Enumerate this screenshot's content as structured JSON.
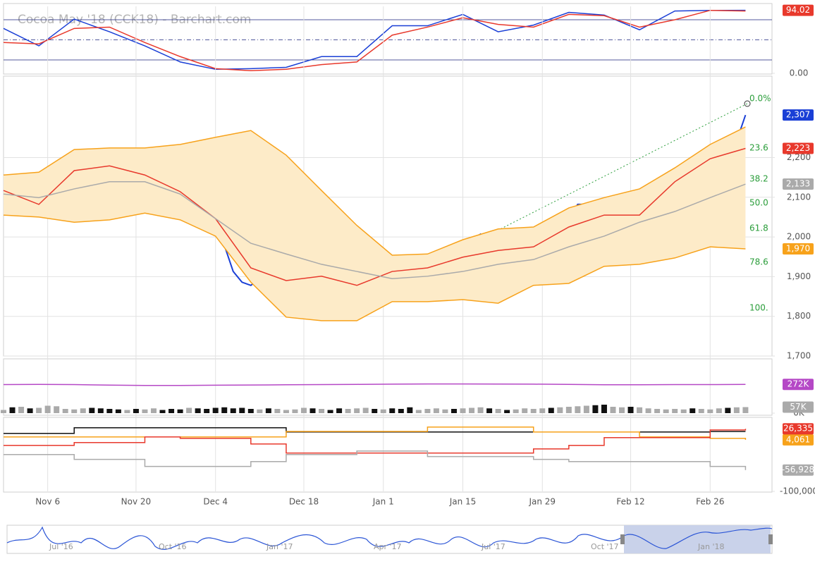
{
  "chart_data": [
    {
      "type": "line",
      "xlim": [
        0,
        87
      ],
      "ylim": [
        0,
        100
      ],
      "yticks": [
        {
          "value": 0,
          "label": "0.00"
        }
      ],
      "levels": [
        80,
        50,
        20
      ],
      "series": [
        {
          "color": "#1a3fd6",
          "badge": "#e8392c",
          "last_label": "94.02",
          "x": [
            0,
            4,
            8,
            12,
            16,
            20,
            24,
            28,
            32,
            36,
            40,
            44,
            48,
            52,
            56,
            60,
            64,
            68,
            72,
            76,
            80,
            84
          ],
          "values": [
            67,
            41,
            81,
            62,
            41,
            17,
            6,
            7,
            9,
            25,
            25,
            71,
            71,
            88,
            62,
            72,
            91,
            87,
            65,
            93,
            94,
            94.02
          ]
        },
        {
          "color": "#e8392c",
          "x": [
            0,
            4,
            8,
            12,
            16,
            20,
            24,
            28,
            32,
            36,
            40,
            44,
            48,
            52,
            56,
            60,
            64,
            68,
            72,
            76,
            80,
            84
          ],
          "values": [
            46,
            44,
            67,
            69,
            46,
            25,
            7,
            4,
            6,
            13,
            17,
            57,
            69,
            83,
            73,
            69,
            88,
            86,
            69,
            80,
            94,
            93
          ]
        }
      ]
    },
    {
      "type": "line",
      "title": "Cocoa May '18 (CCK18) - Barchart.com",
      "xlim": [
        0,
        87
      ],
      "ylim": [
        1700,
        2405
      ],
      "grid": true,
      "xticks": [
        {
          "value": 5,
          "label": "Nov 6"
        },
        {
          "value": 15,
          "label": "Nov 20"
        },
        {
          "value": 24,
          "label": "Dec 4"
        },
        {
          "value": 34,
          "label": "Dec 18"
        },
        {
          "value": 43,
          "label": "Jan 1"
        },
        {
          "value": 52,
          "label": "Jan 15"
        },
        {
          "value": 61,
          "label": "Jan 29"
        },
        {
          "value": 71,
          "label": "Feb 12"
        },
        {
          "value": 80,
          "label": "Feb 26"
        }
      ],
      "yticks": [
        {
          "value": 1700,
          "label": "1,700"
        },
        {
          "value": 1800,
          "label": "1,800"
        },
        {
          "value": 1900,
          "label": "1,900"
        },
        {
          "value": 2000,
          "label": "2,000"
        },
        {
          "value": 2100,
          "label": "2,100"
        },
        {
          "value": 2200,
          "label": "2,200"
        }
      ],
      "fib_labels": [
        "0.0%",
        "23.6",
        "38.2",
        "50.0",
        "61.8",
        "78.6",
        "100."
      ],
      "series": [
        {
          "color": "#1a3fd6",
          "last_label": "2,307",
          "values": [
            2117,
            2108,
            2117,
            2068,
            2068,
            2117,
            2144,
            2192,
            2203,
            2220,
            2206,
            2203,
            2171,
            2153,
            2156,
            2121,
            2121,
            2132,
            2121,
            2103,
            2064,
            2103,
            2073,
            2037,
            2020,
            1979,
            1913,
            1886,
            1878,
            1895,
            1869,
            1886,
            1886,
            1886,
            1913,
            1908,
            1922,
            1913,
            1824,
            1842,
            1869,
            1908,
            1904,
            1931,
            1922,
            1904,
            1901,
            1913,
            1913,
            1936,
            1949,
            1940,
            1957,
            1993,
            2007,
            1972,
            1972,
            1961,
            1972,
            1975,
            1997,
            2011,
            1993,
            2020,
            2046,
            2082,
            2082,
            2064,
            2055,
            2055,
            2064,
            2020,
            2029,
            2073,
            2126,
            2132,
            2139,
            2171,
            2156,
            2179,
            2215,
            2224,
            2219,
            2242,
            2307
          ]
        },
        {
          "color": "#f7a21b",
          "fill_to_next": "#fdebc8",
          "x": [
            0,
            4,
            8,
            12,
            16,
            20,
            24,
            28,
            32,
            36,
            40,
            44,
            48,
            52,
            56,
            60,
            64,
            68,
            72,
            76,
            80,
            84
          ],
          "values": [
            2156,
            2163,
            2220,
            2224,
            2224,
            2233,
            2251,
            2268,
            2206,
            2117,
            2029,
            1954,
            1957,
            1993,
            2020,
            2025,
            2073,
            2099,
            2121,
            2174,
            2233,
            2277
          ]
        },
        {
          "color": "#f7a21b",
          "last_label": "1,970",
          "x": [
            0,
            4,
            8,
            12,
            16,
            20,
            24,
            28,
            32,
            36,
            40,
            44,
            48,
            52,
            56,
            60,
            64,
            68,
            72,
            76,
            80,
            84
          ],
          "values": [
            2055,
            2050,
            2037,
            2043,
            2060,
            2043,
            2002,
            1886,
            1798,
            1789,
            1789,
            1837,
            1837,
            1842,
            1833,
            1878,
            1883,
            1926,
            1931,
            1947,
            1975,
            1970
          ]
        },
        {
          "color": "#e8392c",
          "last_label": "2,223",
          "x": [
            0,
            4,
            8,
            12,
            16,
            20,
            24,
            28,
            32,
            36,
            40,
            44,
            48,
            52,
            56,
            60,
            64,
            68,
            72,
            76,
            80,
            84
          ],
          "values": [
            2117,
            2082,
            2167,
            2179,
            2156,
            2114,
            2046,
            1922,
            1890,
            1901,
            1878,
            1913,
            1922,
            1949,
            1966,
            1975,
            2025,
            2055,
            2055,
            2139,
            2197,
            2223
          ]
        },
        {
          "color": "#aaaaaa",
          "last_label": "2,133",
          "x": [
            0,
            4,
            8,
            12,
            16,
            20,
            24,
            28,
            32,
            36,
            40,
            44,
            48,
            52,
            56,
            60,
            64,
            68,
            72,
            76,
            80,
            84
          ],
          "values": [
            2108,
            2099,
            2121,
            2139,
            2139,
            2108,
            2046,
            1984,
            1957,
            1931,
            1913,
            1895,
            1901,
            1913,
            1931,
            1943,
            1975,
            2002,
            2037,
            2064,
            2099,
            2133
          ]
        }
      ]
    },
    {
      "type": "bar",
      "xlim": [
        0,
        87
      ],
      "ylim": [
        0,
        500
      ],
      "yticks": [
        {
          "value": 0,
          "label": "0K"
        }
      ],
      "series": [
        {
          "color": "#aaaaaa",
          "down_color": "#111111",
          "last_label": "57K",
          "values": [
            30,
            55,
            60,
            45,
            50,
            70,
            65,
            40,
            35,
            45,
            50,
            45,
            40,
            35,
            30,
            40,
            35,
            45,
            30,
            40,
            35,
            50,
            45,
            40,
            50,
            55,
            45,
            50,
            40,
            35,
            45,
            40,
            30,
            35,
            50,
            45,
            40,
            30,
            45,
            40,
            45,
            50,
            40,
            35,
            45,
            40,
            55,
            30,
            40,
            45,
            35,
            40,
            45,
            50,
            55,
            45,
            40,
            30,
            35,
            45,
            40,
            45,
            50,
            55,
            60,
            65,
            70,
            75,
            80,
            60,
            55,
            60,
            55,
            45,
            40,
            35,
            40,
            35,
            45,
            40,
            35,
            45,
            50,
            55,
            57
          ]
        },
        {
          "type": "line",
          "color": "#b548c6",
          "last_label": "272K",
          "x": [
            0,
            4,
            8,
            12,
            16,
            20,
            24,
            28,
            32,
            36,
            40,
            44,
            48,
            52,
            56,
            60,
            64,
            68,
            72,
            76,
            80,
            84
          ],
          "values": [
            270,
            272,
            270,
            265,
            262,
            262,
            264,
            266,
            268,
            270,
            272,
            274,
            276,
            276,
            275,
            274,
            272,
            268,
            268,
            270,
            270,
            272
          ]
        }
      ]
    },
    {
      "type": "step",
      "xlim": [
        0,
        87
      ],
      "ylim": [
        -100000,
        48000
      ],
      "yticks": [
        {
          "value": -100000,
          "label": "-100,000"
        }
      ],
      "series": [
        {
          "color": "#111111",
          "x": [
            0,
            4,
            8,
            12,
            16,
            20,
            24,
            28,
            32,
            36,
            40,
            44,
            48,
            52,
            56,
            60,
            64,
            68,
            72,
            76,
            80,
            84
          ],
          "values": [
            17000,
            17000,
            28400,
            28400,
            28400,
            28400,
            28400,
            28400,
            19900,
            19900,
            19900,
            19900,
            19900,
            19900,
            19900,
            19900,
            19900,
            19900,
            19900,
            19900,
            21000,
            21000
          ]
        },
        {
          "color": "#f7a21b",
          "last_label": "4,061",
          "x": [
            0,
            4,
            8,
            12,
            16,
            20,
            24,
            28,
            32,
            36,
            40,
            44,
            48,
            52,
            56,
            60,
            64,
            68,
            72,
            76,
            80,
            84
          ],
          "values": [
            9900,
            9900,
            9900,
            9900,
            9900,
            9900,
            9900,
            9900,
            21000,
            21000,
            21000,
            21000,
            29800,
            29800,
            29800,
            19900,
            19900,
            19900,
            9900,
            9900,
            7100,
            4061
          ]
        },
        {
          "color": "#e8392c",
          "last_label": "26,335",
          "x": [
            0,
            4,
            8,
            12,
            16,
            20,
            24,
            28,
            32,
            36,
            40,
            44,
            48,
            52,
            56,
            60,
            64,
            68,
            72,
            76,
            80,
            84
          ],
          "values": [
            -7100,
            -7100,
            -1400,
            -1400,
            9900,
            7100,
            7100,
            -4300,
            -22700,
            -22700,
            -22700,
            -22700,
            -22700,
            -22700,
            -22700,
            -14200,
            -7100,
            8500,
            8500,
            8500,
            24000,
            26335
          ]
        },
        {
          "color": "#aaaaaa",
          "last_label": "-56,928",
          "x": [
            0,
            4,
            8,
            12,
            16,
            20,
            24,
            28,
            32,
            36,
            40,
            44,
            48,
            52,
            56,
            60,
            64,
            68,
            72,
            76,
            80,
            84
          ],
          "values": [
            -25600,
            -25600,
            -35500,
            -35500,
            -49700,
            -49700,
            -49700,
            -39800,
            -25600,
            -25600,
            -18500,
            -18500,
            -29800,
            -29800,
            -29800,
            -35500,
            -39800,
            -39800,
            -39800,
            -39800,
            -49700,
            -56928
          ]
        }
      ]
    }
  ],
  "navigator": {
    "labels": [
      "Jul '16",
      "Oct '16",
      "Jan '17",
      "Apr '17",
      "Jul '17",
      "Oct '17",
      "Jan '18"
    ]
  }
}
